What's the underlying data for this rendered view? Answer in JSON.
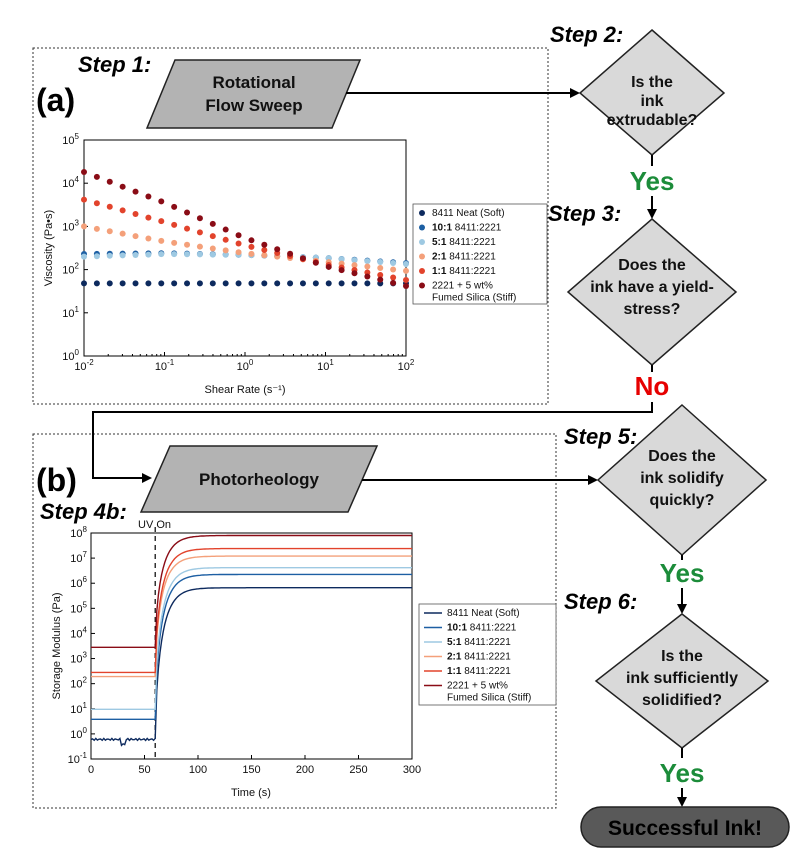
{
  "steps": {
    "step1": "Step 1:",
    "step2": "Step 2:",
    "step3": "Step 3:",
    "step4b": "Step 4b:",
    "step5": "Step 5:",
    "step6": "Step 6:"
  },
  "panels": {
    "a": "(a)",
    "b": "(b)"
  },
  "processes": {
    "rotational": [
      "Rotational",
      "Flow Sweep"
    ],
    "photorheology": [
      "Photorheology"
    ]
  },
  "questions": {
    "q2": [
      "Is the",
      "ink",
      "extrudable?"
    ],
    "q3": [
      "Does the",
      "ink have a yield-",
      "stress?"
    ],
    "q5": [
      "Does the",
      "ink solidify",
      "quickly?"
    ],
    "q6": [
      "Is the",
      "ink sufficiently",
      "solidified?"
    ]
  },
  "answers": {
    "a2": "Yes",
    "a3": "No",
    "a5": "Yes",
    "a6": "Yes"
  },
  "final": "Successful Ink!",
  "colors": {
    "neat": "#0d2a5e",
    "r10": "#1d5fa3",
    "r5": "#9ec9e2",
    "r2": "#f4a07a",
    "r1": "#e2432c",
    "fumed": "#8a0c16",
    "yes": "#1c8c3a",
    "no": "#e60000",
    "shape_fill": "#b3b3b3",
    "diamond_fill": "#d9d9d9"
  },
  "legend": [
    {
      "bold": "",
      "text": "8411 Neat (Soft)",
      "color": "neat"
    },
    {
      "bold": "10:1",
      "text": " 8411:2221",
      "color": "r10"
    },
    {
      "bold": "5:1",
      "text": " 8411:2221",
      "color": "r5"
    },
    {
      "bold": "2:1",
      "text": " 8411:2221",
      "color": "r2"
    },
    {
      "bold": "1:1",
      "text": " 8411:2221",
      "color": "r1"
    },
    {
      "bold": "",
      "text": "2221 + 5 wt%",
      "text2": "Fumed Silica (Stiff)",
      "color": "fumed"
    }
  ],
  "chart_data": [
    {
      "type": "scatter",
      "xlabel": "Shear Rate (s⁻¹)",
      "ylabel": "Viscosity (Pa•s)",
      "xscale": "log",
      "yscale": "log",
      "xlim": [
        0.01,
        100
      ],
      "ylim": [
        1,
        100000
      ],
      "xticks": [
        "10⁻²",
        "10⁻¹",
        "10⁰",
        "10¹",
        "10²"
      ],
      "yticks": [
        "10⁰",
        "10¹",
        "10²",
        "10³",
        "10⁴",
        "10⁵"
      ],
      "legend_position": "right",
      "series": [
        {
          "name": "8411 Neat (Soft)",
          "color": "neat",
          "log_x": [
            -2,
            2
          ],
          "log_y": [
            1.68,
            1.68
          ],
          "n": 26
        },
        {
          "name": "10:1 8411:2221",
          "color": "r10",
          "log_x": [
            -2,
            -1,
            0,
            1,
            2
          ],
          "log_y": [
            2.36,
            2.38,
            2.34,
            2.27,
            2.15
          ],
          "n": 26
        },
        {
          "name": "5:1 8411:2221",
          "color": "r5",
          "log_x": [
            -2,
            -1,
            0,
            1,
            2
          ],
          "log_y": [
            2.3,
            2.36,
            2.34,
            2.27,
            2.13
          ],
          "n": 26
        },
        {
          "name": "2:1 8411:2221",
          "color": "r2",
          "log_x": [
            -2,
            -1,
            0,
            1,
            2
          ],
          "log_y": [
            3.0,
            2.65,
            2.38,
            2.18,
            1.97
          ],
          "n": 26
        },
        {
          "name": "1:1 8411:2221",
          "color": "r1",
          "log_x": [
            -2,
            -1,
            0,
            1,
            2
          ],
          "log_y": [
            3.62,
            3.1,
            2.56,
            2.12,
            1.76
          ],
          "n": 26
        },
        {
          "name": "2221 + 5 wt% Fumed Silica (Stiff)",
          "color": "fumed",
          "log_x": [
            -2,
            -1,
            0,
            1,
            2
          ],
          "log_y": [
            4.26,
            3.55,
            2.73,
            2.08,
            1.62
          ],
          "n": 26
        }
      ]
    },
    {
      "type": "line",
      "xlabel": "Time (s)",
      "ylabel": "Storage Modulus (Pa)",
      "yscale": "log",
      "xlim": [
        0,
        300
      ],
      "ylim": [
        0.1,
        100000000
      ],
      "xticks": [
        "0",
        "50",
        "100",
        "150",
        "200",
        "250",
        "300"
      ],
      "yticks": [
        "10⁻¹",
        "10⁰",
        "10¹",
        "10²",
        "10³",
        "10⁴",
        "10⁵",
        "10⁶",
        "10⁷",
        "10⁸"
      ],
      "annotation": "UV On",
      "uv_on_time": 60,
      "legend_position": "right",
      "series": [
        {
          "name": "8411 Neat (Soft)",
          "color": "neat",
          "start_log": -0.22,
          "end_log": 5.82,
          "noisy": true
        },
        {
          "name": "10:1 8411:2221",
          "color": "r10",
          "start_log": 0.58,
          "end_log": 6.35
        },
        {
          "name": "5:1 8411:2221",
          "color": "r5",
          "start_log": 0.98,
          "end_log": 6.62
        },
        {
          "name": "2:1 8411:2221",
          "color": "r2",
          "start_log": 2.28,
          "end_log": 7.08
        },
        {
          "name": "1:1 8411:2221",
          "color": "r1",
          "start_log": 2.45,
          "end_log": 7.38
        },
        {
          "name": "2221 + 5 wt% Fumed Silica (Stiff)",
          "color": "fumed",
          "start_log": 3.45,
          "end_log": 7.9
        }
      ]
    }
  ]
}
